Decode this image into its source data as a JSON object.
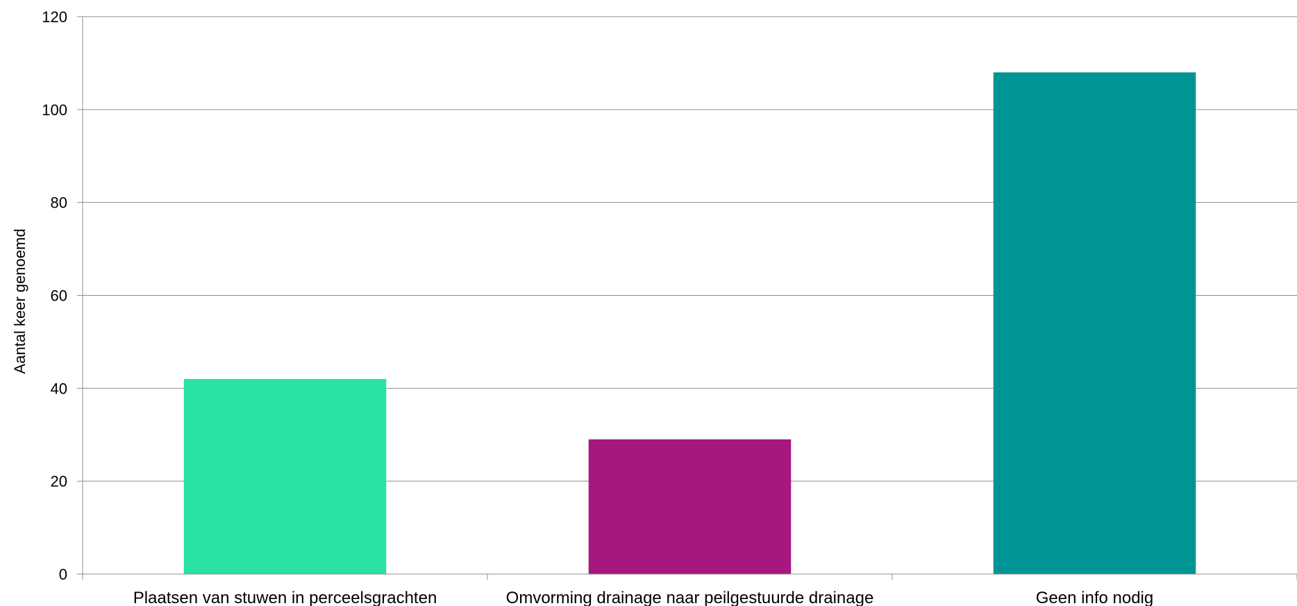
{
  "chart_data": {
    "type": "bar",
    "title": "",
    "xlabel": "",
    "ylabel": "Aantal keer genoemd",
    "ylim": [
      0,
      120
    ],
    "yticks": [
      0,
      20,
      40,
      60,
      80,
      100,
      120
    ],
    "grid": true,
    "legend": "none",
    "categories": [
      "Plaatsen van stuwen in perceelsgrachten",
      "Omvorming drainage naar peilgestuurde drainage",
      "Geen info nodig"
    ],
    "values": [
      42,
      29,
      108
    ],
    "colors": [
      "#2ae2a4",
      "#a6177f",
      "#009594"
    ]
  }
}
